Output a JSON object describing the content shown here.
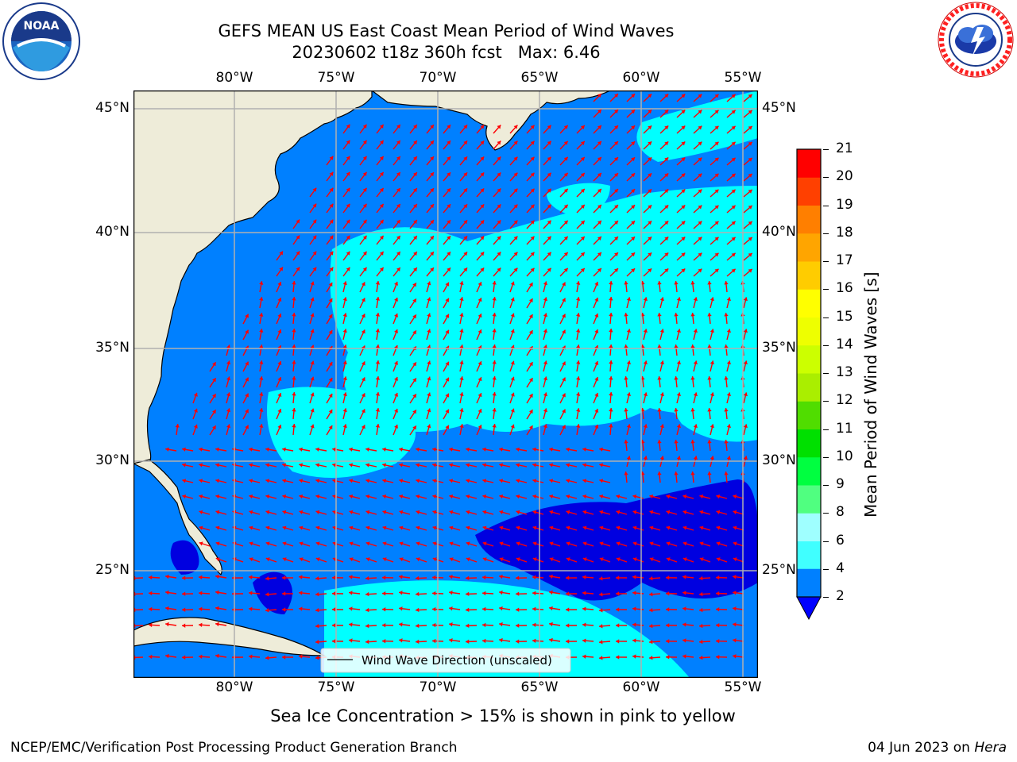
{
  "header": {
    "title_line1": "GEFS MEAN US East Coast Mean Period of Wind Waves",
    "title_line2": "20230602 t18z 360h fcst   Max: 6.46"
  },
  "logos": {
    "left": "NOAA",
    "left_ring": "NATIONAL OCEANIC AND ATMOSPHERIC ADMINISTRATION · U.S. DEPARTMENT OF COMMERCE",
    "right_ring": "NATIONAL WEATHER SERVICE"
  },
  "map": {
    "lon_ticks": [
      "80°W",
      "75°W",
      "70°W",
      "65°W",
      "60°W",
      "55°W"
    ],
    "lat_ticks": [
      "45°N",
      "40°N",
      "35°N",
      "30°N",
      "25°N"
    ],
    "legend_label": "Wind Wave Direction (unscaled)",
    "extent": {
      "lon": [
        -85,
        -54.3
      ],
      "lat": [
        20.5,
        46
      ]
    },
    "colors": {
      "land": "#eeecd9",
      "ocean_low": "#0080ff",
      "ocean_mid": "#00ffff",
      "ocean_very_low": "#0000e0",
      "arrow": "#ff0000",
      "grid": "#b0b0b0"
    }
  },
  "colorbar": {
    "label": "Mean Period of Wind Waves [s]",
    "ticks": [
      "2",
      "4",
      "6",
      "8",
      "9",
      "10",
      "11",
      "12",
      "13",
      "14",
      "15",
      "16",
      "17",
      "18",
      "19",
      "20",
      "21"
    ],
    "colors": [
      "#0080ff",
      "#00ffff",
      "#40ffff",
      "#9fffff",
      "#50ff80",
      "#00ff40",
      "#00e000",
      "#50dd00",
      "#aaee00",
      "#ccff00",
      "#eeff00",
      "#ffff00",
      "#ffcc00",
      "#ffa500",
      "#ff7f00",
      "#ff4000",
      "#ff0000"
    ],
    "extend_min_color": "#0000ff"
  },
  "footer": {
    "subtitle": "Sea Ice Concentration > 15% is shown in pink to yellow",
    "left": "NCEP/EMC/Verification Post Processing Product Generation Branch",
    "right_prefix": "04 Jun 2023 on ",
    "right_host": "Hera"
  }
}
